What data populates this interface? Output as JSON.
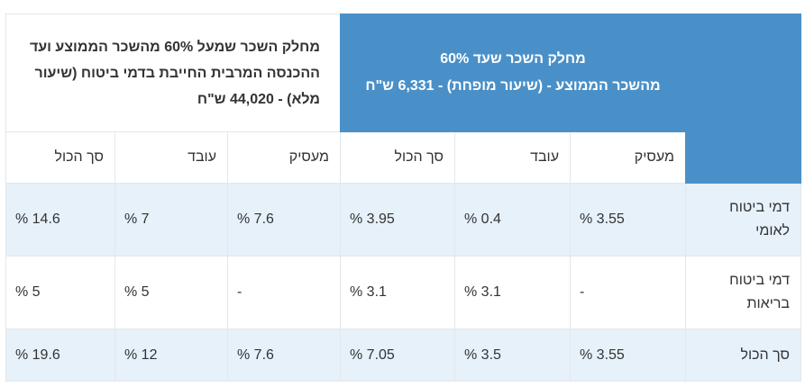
{
  "header": {
    "group_low": {
      "line1": "מחלק השכר שעד 60%",
      "line2": "מהשכר הממוצע - (שיעור מופחת) - 6,331 ש\"ח"
    },
    "group_high": {
      "line1": "מחלק השכר שמעל 60% מהשכר הממוצע ועד",
      "line2": "ההכנסה המרבית החייבת בדמי ביטוח (שיעור",
      "line3": "מלא) - 44,020 ש\"ח"
    },
    "columns": [
      "מעסיק",
      "עובד",
      "סך הכול",
      "מעסיק",
      "עובד",
      "סך הכול"
    ]
  },
  "rows": [
    {
      "label_line1": "דמי ביטוח",
      "label_line2": "לאומי",
      "values": [
        "3.55 %",
        "0.4 %",
        "3.95 %",
        "7.6 %",
        "7 %",
        "14.6 %"
      ]
    },
    {
      "label_line1": "דמי ביטוח",
      "label_line2": "בריאות",
      "values": [
        "-",
        "3.1 %",
        "3.1 %",
        "-",
        "5 %",
        "5 %"
      ]
    },
    {
      "label_line1": "סך הכול",
      "label_line2": "",
      "values": [
        "3.55 %",
        "3.5 %",
        "7.05 %",
        "7.6 %",
        "12 %",
        "19.6 %"
      ]
    }
  ],
  "colors": {
    "header_blue": "#4a90c8",
    "row_stripe": "#e6f1fa",
    "border": "#e3e7ea"
  }
}
